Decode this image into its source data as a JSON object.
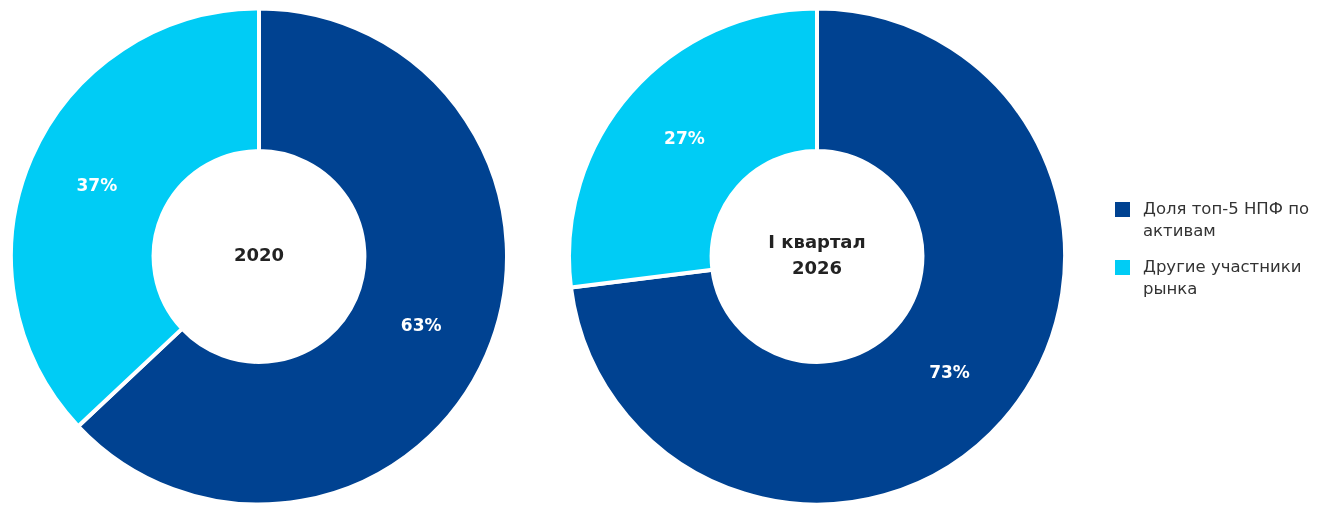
{
  "chart_data": [
    {
      "type": "donut",
      "title": "2020",
      "categories": [
        "Доля топ-5 НПФ по активам",
        "Другие участники рынка"
      ],
      "values": [
        63,
        37
      ],
      "value_labels": [
        "63%",
        "37%"
      ],
      "colors": [
        "#004291",
        "#00ccf5"
      ],
      "legend": "right"
    },
    {
      "type": "donut",
      "title": "I квартал 2026",
      "categories": [
        null,
        null
      ],
      "values": [
        73,
        27
      ],
      "value_labels": [
        "73%",
        "27%"
      ],
      "colors": [
        "#004291",
        "#00ccf5"
      ],
      "legend": false
    }
  ]
}
